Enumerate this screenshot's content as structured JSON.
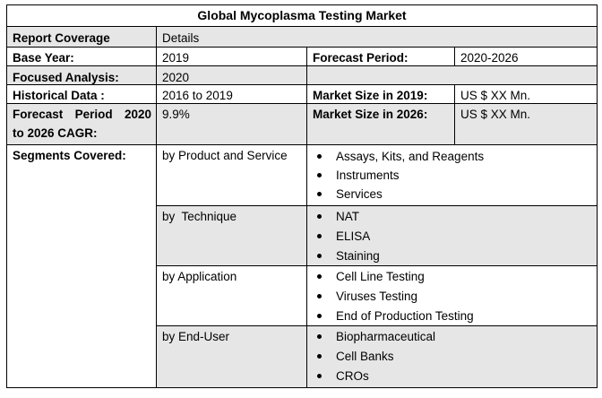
{
  "title": "Global Mycoplasma Testing Market",
  "rows": {
    "coverage": {
      "label": "Report Coverage",
      "value": "Details"
    },
    "base_year": {
      "label": "Base Year:",
      "value": "2019",
      "label2": "Forecast Period:",
      "value2": "2020-2026"
    },
    "focused": {
      "label": "Focused Analysis:",
      "value": "2020"
    },
    "historical": {
      "label": "Historical Data :",
      "value": "2016 to 2019",
      "label2": "Market Size in 2019:",
      "value2": "US $ XX Mn."
    },
    "cagr": {
      "label_line1": "Forecast Period 2020",
      "label_line2": "to 2026 CAGR:",
      "value": "9.9%",
      "label2": "Market Size in 2026:",
      "value2": "US $ XX Mn."
    }
  },
  "segments": {
    "label": "Segments Covered:",
    "groups": [
      {
        "name": "by Product and Service",
        "items": [
          "Assays, Kits, and Reagents",
          "Instruments",
          "Services"
        ]
      },
      {
        "name": "by  Technique",
        "items": [
          "NAT",
          "ELISA",
          "Staining"
        ]
      },
      {
        "name": "by Application",
        "items": [
          "Cell Line Testing",
          "Viruses Testing",
          "End of Production Testing"
        ]
      },
      {
        "name": "by End-User",
        "items": [
          "Biopharmaceutical",
          "Cell Banks",
          "CROs"
        ]
      }
    ]
  }
}
